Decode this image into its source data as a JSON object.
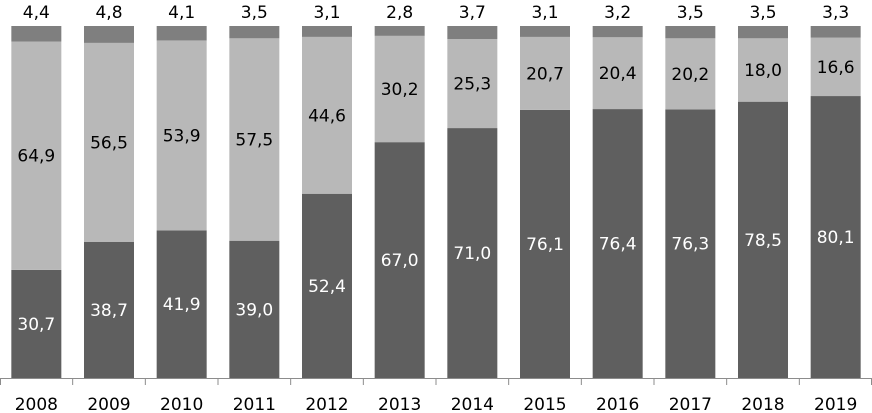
{
  "chart_data": {
    "type": "bar",
    "stacked": true,
    "normalized_percent": true,
    "categories": [
      "2008",
      "2009",
      "2010",
      "2011",
      "2012",
      "2013",
      "2014",
      "2015",
      "2016",
      "2017",
      "2018",
      "2019"
    ],
    "series": [
      {
        "values": [
          30.7,
          38.7,
          41.9,
          39.0,
          52.4,
          67.0,
          71.0,
          76.1,
          76.4,
          76.3,
          78.5,
          80.1
        ],
        "labels": [
          "30,7",
          "38,7",
          "41,9",
          "39,0",
          "52,4",
          "67,0",
          "71,0",
          "76,1",
          "76,4",
          "76,3",
          "78,5",
          "80,1"
        ],
        "color": "#5f5f5f",
        "label_color": "#ffffff"
      },
      {
        "values": [
          64.9,
          56.5,
          53.9,
          57.5,
          44.6,
          30.2,
          25.3,
          20.7,
          20.4,
          20.2,
          18.0,
          16.6
        ],
        "labels": [
          "64,9",
          "56,5",
          "53,9",
          "57,5",
          "44,6",
          "30,2",
          "25,3",
          "20,7",
          "20,4",
          "20,2",
          "18,0",
          "16,6"
        ],
        "color": "#b8b8b8",
        "label_color": "#000000"
      },
      {
        "values": [
          4.4,
          4.8,
          4.1,
          3.5,
          3.1,
          2.8,
          3.7,
          3.1,
          3.2,
          3.5,
          3.5,
          3.3
        ],
        "labels": [
          "4,4",
          "4,8",
          "4,1",
          "3,5",
          "3,1",
          "2,8",
          "3,7",
          "3,1",
          "3,2",
          "3,5",
          "3,5",
          "3,3"
        ],
        "color": "#7f7f7f",
        "label_color": "#000000",
        "label_position": "above"
      }
    ],
    "ylim": [
      0,
      100
    ],
    "grid": false,
    "legend": "none"
  }
}
